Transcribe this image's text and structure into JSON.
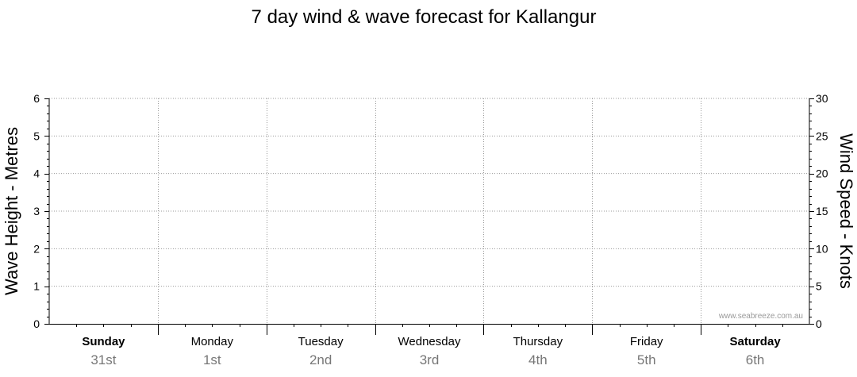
{
  "chart_data": {
    "type": "line",
    "title": "7 day wind & wave forecast for Kallangur",
    "ylabel_left": "Wave Height - Metres",
    "ylabel_right": "Wind Speed - Knots",
    "ylim_left": [
      0,
      6
    ],
    "ylim_right": [
      0,
      30
    ],
    "yticks_left": [
      "0",
      "1",
      "2",
      "3",
      "4",
      "5",
      "6"
    ],
    "yticks_right": [
      "0",
      "5",
      "10",
      "15",
      "20",
      "25",
      "30"
    ],
    "grid": true,
    "days": [
      {
        "name": "Sunday",
        "date": "31st",
        "bold": true
      },
      {
        "name": "Monday",
        "date": "1st",
        "bold": false
      },
      {
        "name": "Tuesday",
        "date": "2nd",
        "bold": false
      },
      {
        "name": "Wednesday",
        "date": "3rd",
        "bold": false
      },
      {
        "name": "Thursday",
        "date": "4th",
        "bold": false
      },
      {
        "name": "Friday",
        "date": "5th",
        "bold": false
      },
      {
        "name": "Saturday",
        "date": "6th",
        "bold": true
      }
    ],
    "series": [],
    "watermark": "www.seabreeze.com.au"
  }
}
